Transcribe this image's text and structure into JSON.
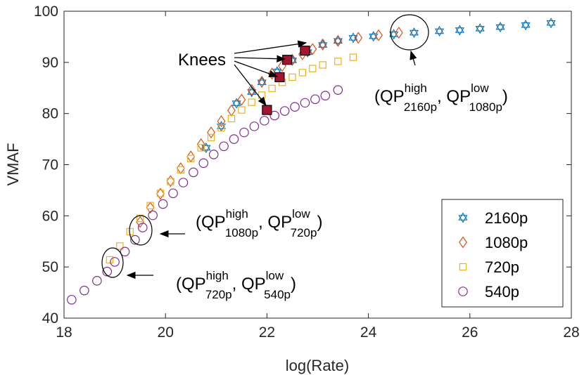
{
  "chart_data": {
    "type": "scatter",
    "title": "",
    "xlabel": "log(Rate)",
    "ylabel": "VMAF",
    "xlim": [
      18,
      28
    ],
    "ylim": [
      40,
      100
    ],
    "xticks": [
      18,
      20,
      22,
      24,
      26,
      28
    ],
    "yticks": [
      40,
      50,
      60,
      70,
      80,
      90,
      100
    ],
    "grid": false,
    "legend_position": "bottom-right",
    "series": [
      {
        "name": "2160p",
        "marker": "hexagram",
        "color": "#0072bd",
        "points": [
          [
            20.8,
            73.3
          ],
          [
            21.1,
            77.5
          ],
          [
            21.4,
            82.0
          ],
          [
            21.7,
            84.2
          ],
          [
            21.9,
            86.1
          ],
          [
            22.2,
            88.2
          ],
          [
            22.5,
            90.4
          ],
          [
            22.8,
            92.0
          ],
          [
            23.1,
            93.4
          ],
          [
            23.4,
            94.2
          ],
          [
            23.7,
            94.8
          ],
          [
            24.1,
            95.1
          ],
          [
            24.5,
            95.5
          ],
          [
            24.9,
            95.8
          ],
          [
            25.4,
            96.1
          ],
          [
            25.8,
            96.3
          ],
          [
            26.2,
            96.6
          ],
          [
            26.6,
            96.9
          ],
          [
            27.1,
            97.3
          ],
          [
            27.6,
            97.7
          ]
        ]
      },
      {
        "name": "1080p",
        "marker": "diamond",
        "color": "#d95319",
        "points": [
          [
            19.5,
            58.8
          ],
          [
            19.7,
            61.6
          ],
          [
            19.9,
            64.3
          ],
          [
            20.1,
            66.8
          ],
          [
            20.3,
            69.3
          ],
          [
            20.5,
            71.6
          ],
          [
            20.7,
            74.0
          ],
          [
            20.9,
            76.3
          ],
          [
            21.1,
            78.5
          ],
          [
            21.3,
            80.6
          ],
          [
            21.5,
            82.7
          ],
          [
            21.7,
            84.6
          ],
          [
            21.9,
            86.2
          ],
          [
            22.1,
            87.8
          ],
          [
            22.3,
            89.3
          ],
          [
            22.5,
            90.5
          ],
          [
            22.7,
            91.6
          ],
          [
            22.9,
            92.6
          ],
          [
            23.1,
            93.5
          ],
          [
            23.4,
            94.2
          ],
          [
            23.8,
            94.8
          ],
          [
            24.2,
            95.3
          ],
          [
            24.6,
            95.8
          ]
        ]
      },
      {
        "name": "720p",
        "marker": "square",
        "color": "#edb120",
        "points": [
          [
            18.9,
            51.4
          ],
          [
            19.1,
            54.1
          ],
          [
            19.3,
            56.9
          ],
          [
            19.5,
            59.5
          ],
          [
            19.7,
            62.0
          ],
          [
            19.9,
            64.4
          ],
          [
            20.1,
            66.7
          ],
          [
            20.3,
            69.0
          ],
          [
            20.5,
            71.2
          ],
          [
            20.7,
            73.3
          ],
          [
            20.9,
            75.3
          ],
          [
            21.1,
            77.2
          ],
          [
            21.3,
            79.0
          ],
          [
            21.5,
            80.7
          ],
          [
            21.7,
            82.2
          ],
          [
            21.9,
            83.6
          ],
          [
            22.1,
            84.9
          ],
          [
            22.3,
            86.1
          ],
          [
            22.5,
            87.1
          ],
          [
            22.7,
            88.0
          ],
          [
            22.9,
            88.8
          ],
          [
            23.1,
            89.5
          ],
          [
            23.4,
            90.2
          ],
          [
            23.7,
            91.0
          ]
        ]
      },
      {
        "name": "540p",
        "marker": "circle",
        "color": "#7e2f8e",
        "points": [
          [
            18.15,
            43.6
          ],
          [
            18.4,
            45.4
          ],
          [
            18.65,
            47.3
          ],
          [
            18.85,
            49.1
          ],
          [
            19.0,
            51.0
          ],
          [
            19.2,
            53.0
          ],
          [
            19.4,
            55.3
          ],
          [
            19.55,
            57.7
          ],
          [
            19.75,
            60.1
          ],
          [
            19.95,
            62.3
          ],
          [
            20.15,
            64.4
          ],
          [
            20.35,
            66.5
          ],
          [
            20.55,
            68.5
          ],
          [
            20.75,
            70.3
          ],
          [
            20.95,
            72.0
          ],
          [
            21.15,
            73.6
          ],
          [
            21.35,
            75.0
          ],
          [
            21.55,
            76.3
          ],
          [
            21.75,
            77.5
          ],
          [
            21.95,
            78.6
          ],
          [
            22.15,
            79.6
          ],
          [
            22.35,
            80.5
          ],
          [
            22.55,
            81.3
          ],
          [
            22.75,
            82.1
          ],
          [
            22.95,
            82.8
          ],
          [
            23.15,
            83.5
          ],
          [
            23.4,
            84.6
          ]
        ]
      }
    ],
    "knees": {
      "label": "Knees",
      "color": "#a2142f",
      "points": [
        [
          22.0,
          80.7
        ],
        [
          22.25,
          87.1
        ],
        [
          22.4,
          90.5
        ],
        [
          22.75,
          92.3
        ]
      ]
    },
    "annotations": [
      {
        "id": "qp-2160-1080",
        "prefix": "(QP",
        "sup1": "high",
        "sub1": "2160p",
        "mid": ", QP",
        "sup2": "low",
        "sub2": "1080p",
        "suffix": ")"
      },
      {
        "id": "qp-1080-720",
        "prefix": "(QP",
        "sup1": "high",
        "sub1": "1080p",
        "mid": ", QP",
        "sup2": "low",
        "sub2": "720p",
        "suffix": ")"
      },
      {
        "id": "qp-720-540",
        "prefix": "(QP",
        "sup1": "high",
        "sub1": "720p",
        "mid": ", QP",
        "sup2": "low",
        "sub2": "540p",
        "suffix": ")"
      }
    ]
  }
}
